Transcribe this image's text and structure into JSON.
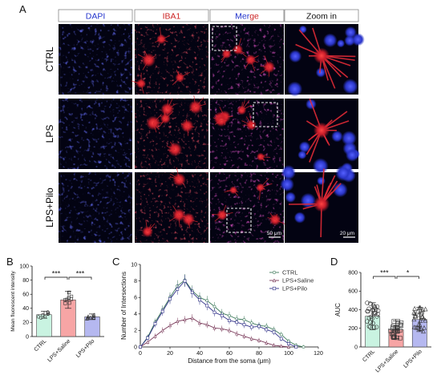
{
  "panel_letters": [
    "A",
    "B",
    "C",
    "D"
  ],
  "panel_a": {
    "column_headers": [
      {
        "parts": [
          {
            "text": "DAPI",
            "color": "#2233cc"
          }
        ]
      },
      {
        "parts": [
          {
            "text": "IBA1",
            "color": "#cc2222"
          }
        ]
      },
      {
        "parts": [
          {
            "text": "Mer",
            "color": "#2233cc"
          },
          {
            "text": "ge",
            "color": "#cc2222"
          }
        ]
      },
      {
        "parts": [
          {
            "text": "Zoom in",
            "color": "#111111"
          }
        ]
      }
    ],
    "row_labels": [
      "CTRL",
      "LPS",
      "LPS+Pilo"
    ],
    "scale_bars": [
      "50 μm",
      "20 μm"
    ]
  },
  "chart_data": [
    {
      "type": "bar",
      "ylabel": "Mean fluorescent intensity",
      "categories": [
        "CTRL",
        "LPS+Saline",
        "LPS+Pilo"
      ],
      "values": [
        31,
        52,
        28
      ],
      "sd": [
        5,
        12,
        4
      ],
      "ylim": [
        0,
        100
      ],
      "yticks": [
        0,
        20,
        40,
        60,
        80,
        100
      ],
      "colors": [
        "#c9f3e1",
        "#f7a5a5",
        "#b5b8f0"
      ],
      "significance": [
        "***",
        "***"
      ]
    },
    {
      "type": "line",
      "xlabel": "Distance from the soma (μm)",
      "ylabel": "Number of Intersections",
      "xlim": [
        0,
        120
      ],
      "ylim": [
        0,
        10
      ],
      "xticks": [
        0,
        20,
        40,
        60,
        80,
        100,
        120
      ],
      "yticks": [
        0,
        2,
        4,
        6,
        8,
        10
      ],
      "series": [
        {
          "name": "CTRL",
          "color": "#3d7a5a",
          "marker": "circle",
          "x": [
            0,
            5,
            10,
            15,
            20,
            25,
            30,
            35,
            40,
            45,
            50,
            55,
            60,
            65,
            70,
            75,
            80,
            85,
            90,
            95,
            100,
            105,
            110
          ],
          "y": [
            0,
            1.2,
            3.0,
            4.5,
            6.0,
            7.4,
            8.1,
            6.8,
            6.0,
            5.6,
            4.9,
            4.1,
            3.8,
            3.4,
            3.3,
            2.9,
            2.6,
            2.5,
            2.1,
            1.5,
            0.7,
            0.2,
            0
          ]
        },
        {
          "name": "LPS+Saline",
          "color": "#7a3a5a",
          "marker": "triangle",
          "x": [
            0,
            5,
            10,
            15,
            20,
            25,
            30,
            35,
            40,
            45,
            50,
            55,
            60,
            65,
            70,
            75,
            80,
            85,
            90,
            95,
            100
          ],
          "y": [
            0,
            0.6,
            1.3,
            2.0,
            2.6,
            3.1,
            3.3,
            3.5,
            2.9,
            2.7,
            2.3,
            2.2,
            2.0,
            1.6,
            1.3,
            1.0,
            0.8,
            0.5,
            0.2,
            0.1,
            0
          ]
        },
        {
          "name": "LPS+Pilo",
          "color": "#33338a",
          "marker": "square",
          "x": [
            0,
            5,
            10,
            15,
            20,
            25,
            30,
            35,
            40,
            45,
            50,
            55,
            60,
            65,
            70,
            75,
            80,
            85,
            90,
            95,
            100,
            105
          ],
          "y": [
            0,
            1.1,
            2.8,
            4.3,
            5.8,
            7.0,
            8.0,
            6.6,
            5.7,
            5.0,
            4.2,
            3.8,
            3.2,
            3.0,
            2.7,
            2.4,
            2.5,
            2.1,
            1.8,
            1.0,
            0.4,
            0
          ]
        }
      ]
    },
    {
      "type": "bar",
      "ylabel": "AUC",
      "categories": [
        "CTRL",
        "LPS+Saline",
        "LPS+Pilo"
      ],
      "values": [
        330,
        185,
        295
      ],
      "sd": [
        145,
        95,
        130
      ],
      "ylim": [
        0,
        800
      ],
      "yticks": [
        0,
        200,
        400,
        600,
        800
      ],
      "colors": [
        "#c9f3e1",
        "#f7a5a5",
        "#b5b8f0"
      ],
      "markers": [
        "circle",
        "square",
        "triangle"
      ],
      "significance": [
        "***",
        "*"
      ]
    }
  ]
}
